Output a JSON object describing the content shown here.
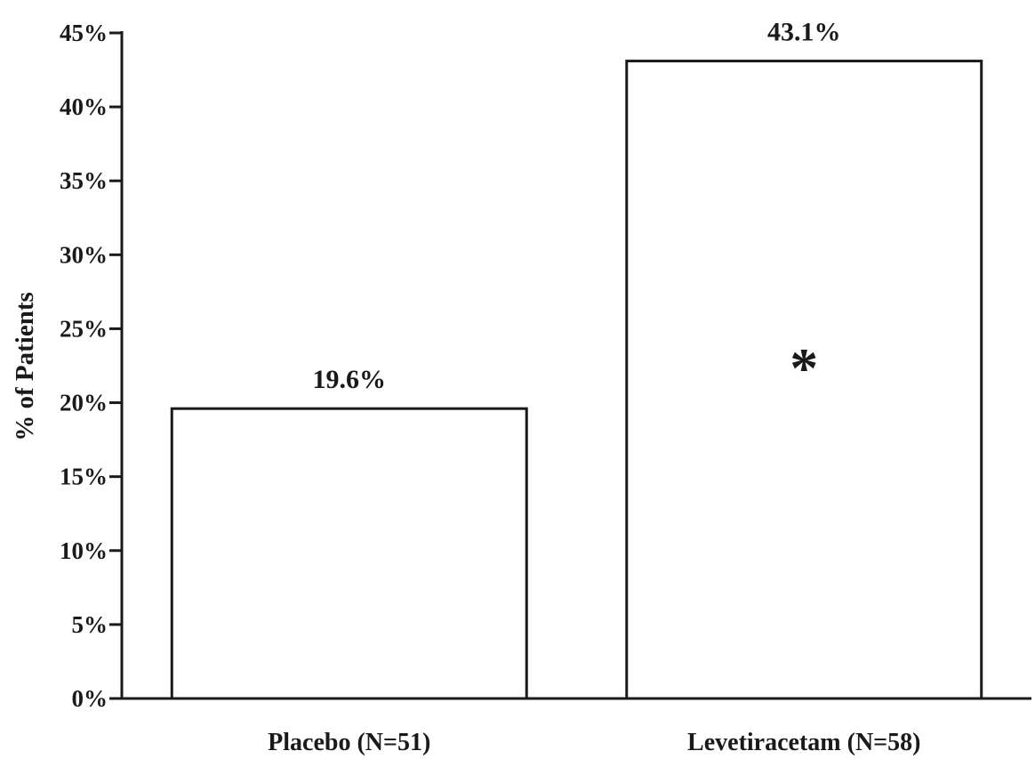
{
  "chart_data": {
    "type": "bar",
    "categories": [
      "Placebo (N=51)",
      "Levetiracetam (N=58)"
    ],
    "values": [
      19.6,
      43.1
    ],
    "value_labels": [
      "19.6%",
      "43.1%"
    ],
    "title": "",
    "xlabel": "",
    "ylabel": "% of Patients",
    "ylim": [
      0,
      45
    ],
    "y_ticks": [
      0,
      5,
      10,
      15,
      20,
      25,
      30,
      35,
      40,
      45
    ],
    "y_tick_labels": [
      "0%",
      "5%",
      "10%",
      "15%",
      "20%",
      "25%",
      "30%",
      "35%",
      "40%",
      "45%"
    ],
    "annotations": [
      {
        "category": "Levetiracetam (N=58)",
        "text": "*"
      }
    ],
    "grid": false,
    "legend": "none",
    "colors": {
      "bar_fill": "#ffffff",
      "bar_stroke": "#1a1a1a",
      "text": "#1a1a1a"
    }
  }
}
